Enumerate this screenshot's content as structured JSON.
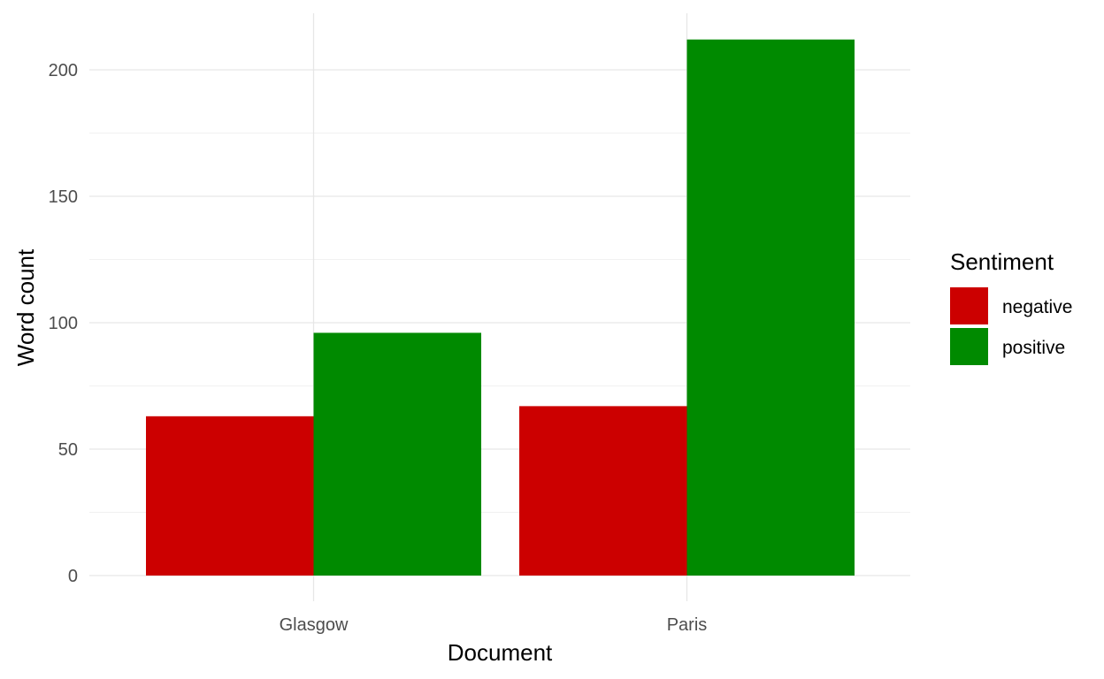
{
  "chart_data": {
    "type": "bar",
    "title": "",
    "xlabel": "Document",
    "ylabel": "Word count",
    "categories": [
      "Glasgow",
      "Paris"
    ],
    "series": [
      {
        "name": "negative",
        "color": "#cc0000",
        "values": [
          63,
          67
        ]
      },
      {
        "name": "positive",
        "color": "#008a00",
        "values": [
          96,
          212
        ]
      }
    ],
    "ylim": [
      0,
      222
    ],
    "yticks": [
      0,
      50,
      100,
      150,
      200
    ],
    "ytick_labels": [
      "0",
      "50",
      "100",
      "150",
      "200"
    ],
    "grid": true,
    "legend": {
      "title": "Sentiment",
      "position": "right"
    }
  }
}
